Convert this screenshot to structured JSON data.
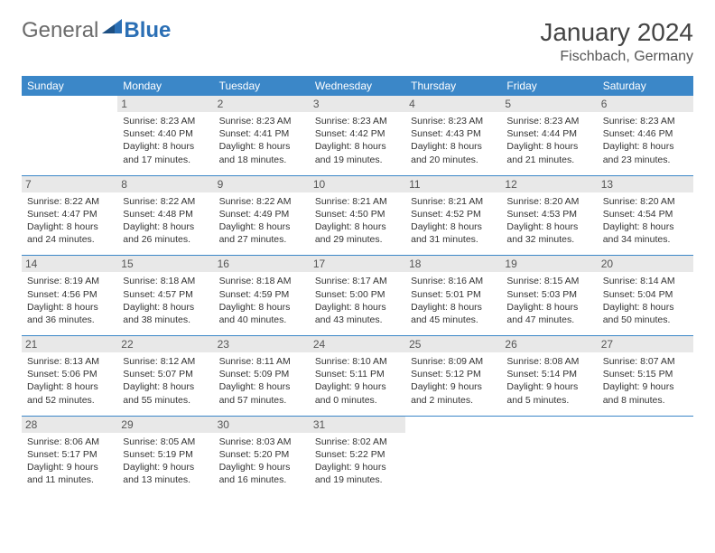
{
  "brand": {
    "part1": "General",
    "part2": "Blue"
  },
  "title": "January 2024",
  "location": "Fischbach, Germany",
  "colors": {
    "header_bg": "#3b87c8",
    "header_text": "#ffffff",
    "daynum_bg": "#e8e8e8",
    "border": "#3b87c8",
    "text": "#333333",
    "logo_gray": "#6a6a6a",
    "logo_blue": "#2b6fb5"
  },
  "weekdays": [
    "Sunday",
    "Monday",
    "Tuesday",
    "Wednesday",
    "Thursday",
    "Friday",
    "Saturday"
  ],
  "weeks": [
    [
      {
        "day": "",
        "lines": [
          "",
          "",
          "",
          ""
        ]
      },
      {
        "day": "1",
        "lines": [
          "Sunrise: 8:23 AM",
          "Sunset: 4:40 PM",
          "Daylight: 8 hours",
          "and 17 minutes."
        ]
      },
      {
        "day": "2",
        "lines": [
          "Sunrise: 8:23 AM",
          "Sunset: 4:41 PM",
          "Daylight: 8 hours",
          "and 18 minutes."
        ]
      },
      {
        "day": "3",
        "lines": [
          "Sunrise: 8:23 AM",
          "Sunset: 4:42 PM",
          "Daylight: 8 hours",
          "and 19 minutes."
        ]
      },
      {
        "day": "4",
        "lines": [
          "Sunrise: 8:23 AM",
          "Sunset: 4:43 PM",
          "Daylight: 8 hours",
          "and 20 minutes."
        ]
      },
      {
        "day": "5",
        "lines": [
          "Sunrise: 8:23 AM",
          "Sunset: 4:44 PM",
          "Daylight: 8 hours",
          "and 21 minutes."
        ]
      },
      {
        "day": "6",
        "lines": [
          "Sunrise: 8:23 AM",
          "Sunset: 4:46 PM",
          "Daylight: 8 hours",
          "and 23 minutes."
        ]
      }
    ],
    [
      {
        "day": "7",
        "lines": [
          "Sunrise: 8:22 AM",
          "Sunset: 4:47 PM",
          "Daylight: 8 hours",
          "and 24 minutes."
        ]
      },
      {
        "day": "8",
        "lines": [
          "Sunrise: 8:22 AM",
          "Sunset: 4:48 PM",
          "Daylight: 8 hours",
          "and 26 minutes."
        ]
      },
      {
        "day": "9",
        "lines": [
          "Sunrise: 8:22 AM",
          "Sunset: 4:49 PM",
          "Daylight: 8 hours",
          "and 27 minutes."
        ]
      },
      {
        "day": "10",
        "lines": [
          "Sunrise: 8:21 AM",
          "Sunset: 4:50 PM",
          "Daylight: 8 hours",
          "and 29 minutes."
        ]
      },
      {
        "day": "11",
        "lines": [
          "Sunrise: 8:21 AM",
          "Sunset: 4:52 PM",
          "Daylight: 8 hours",
          "and 31 minutes."
        ]
      },
      {
        "day": "12",
        "lines": [
          "Sunrise: 8:20 AM",
          "Sunset: 4:53 PM",
          "Daylight: 8 hours",
          "and 32 minutes."
        ]
      },
      {
        "day": "13",
        "lines": [
          "Sunrise: 8:20 AM",
          "Sunset: 4:54 PM",
          "Daylight: 8 hours",
          "and 34 minutes."
        ]
      }
    ],
    [
      {
        "day": "14",
        "lines": [
          "Sunrise: 8:19 AM",
          "Sunset: 4:56 PM",
          "Daylight: 8 hours",
          "and 36 minutes."
        ]
      },
      {
        "day": "15",
        "lines": [
          "Sunrise: 8:18 AM",
          "Sunset: 4:57 PM",
          "Daylight: 8 hours",
          "and 38 minutes."
        ]
      },
      {
        "day": "16",
        "lines": [
          "Sunrise: 8:18 AM",
          "Sunset: 4:59 PM",
          "Daylight: 8 hours",
          "and 40 minutes."
        ]
      },
      {
        "day": "17",
        "lines": [
          "Sunrise: 8:17 AM",
          "Sunset: 5:00 PM",
          "Daylight: 8 hours",
          "and 43 minutes."
        ]
      },
      {
        "day": "18",
        "lines": [
          "Sunrise: 8:16 AM",
          "Sunset: 5:01 PM",
          "Daylight: 8 hours",
          "and 45 minutes."
        ]
      },
      {
        "day": "19",
        "lines": [
          "Sunrise: 8:15 AM",
          "Sunset: 5:03 PM",
          "Daylight: 8 hours",
          "and 47 minutes."
        ]
      },
      {
        "day": "20",
        "lines": [
          "Sunrise: 8:14 AM",
          "Sunset: 5:04 PM",
          "Daylight: 8 hours",
          "and 50 minutes."
        ]
      }
    ],
    [
      {
        "day": "21",
        "lines": [
          "Sunrise: 8:13 AM",
          "Sunset: 5:06 PM",
          "Daylight: 8 hours",
          "and 52 minutes."
        ]
      },
      {
        "day": "22",
        "lines": [
          "Sunrise: 8:12 AM",
          "Sunset: 5:07 PM",
          "Daylight: 8 hours",
          "and 55 minutes."
        ]
      },
      {
        "day": "23",
        "lines": [
          "Sunrise: 8:11 AM",
          "Sunset: 5:09 PM",
          "Daylight: 8 hours",
          "and 57 minutes."
        ]
      },
      {
        "day": "24",
        "lines": [
          "Sunrise: 8:10 AM",
          "Sunset: 5:11 PM",
          "Daylight: 9 hours",
          "and 0 minutes."
        ]
      },
      {
        "day": "25",
        "lines": [
          "Sunrise: 8:09 AM",
          "Sunset: 5:12 PM",
          "Daylight: 9 hours",
          "and 2 minutes."
        ]
      },
      {
        "day": "26",
        "lines": [
          "Sunrise: 8:08 AM",
          "Sunset: 5:14 PM",
          "Daylight: 9 hours",
          "and 5 minutes."
        ]
      },
      {
        "day": "27",
        "lines": [
          "Sunrise: 8:07 AM",
          "Sunset: 5:15 PM",
          "Daylight: 9 hours",
          "and 8 minutes."
        ]
      }
    ],
    [
      {
        "day": "28",
        "lines": [
          "Sunrise: 8:06 AM",
          "Sunset: 5:17 PM",
          "Daylight: 9 hours",
          "and 11 minutes."
        ]
      },
      {
        "day": "29",
        "lines": [
          "Sunrise: 8:05 AM",
          "Sunset: 5:19 PM",
          "Daylight: 9 hours",
          "and 13 minutes."
        ]
      },
      {
        "day": "30",
        "lines": [
          "Sunrise: 8:03 AM",
          "Sunset: 5:20 PM",
          "Daylight: 9 hours",
          "and 16 minutes."
        ]
      },
      {
        "day": "31",
        "lines": [
          "Sunrise: 8:02 AM",
          "Sunset: 5:22 PM",
          "Daylight: 9 hours",
          "and 19 minutes."
        ]
      },
      {
        "day": "",
        "lines": [
          "",
          "",
          "",
          ""
        ]
      },
      {
        "day": "",
        "lines": [
          "",
          "",
          "",
          ""
        ]
      },
      {
        "day": "",
        "lines": [
          "",
          "",
          "",
          ""
        ]
      }
    ]
  ]
}
